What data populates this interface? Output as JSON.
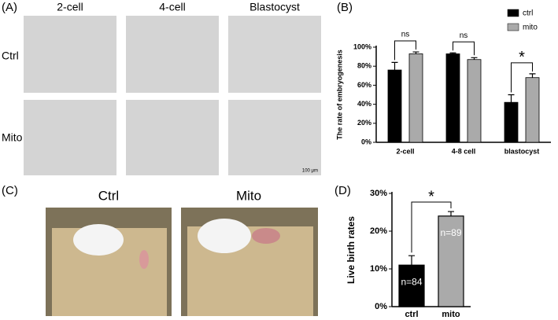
{
  "panels": {
    "a": "(A)",
    "b": "(B)",
    "c": "(C)",
    "d": "(D)"
  },
  "embryo_images": {
    "columns": [
      "2-cell",
      "4-cell",
      "Blastocyst"
    ],
    "rows": [
      "Ctrl",
      "Mito"
    ],
    "scale_bar": "100 μm"
  },
  "mouse_photos": {
    "labels": [
      "Ctrl",
      "Mito"
    ]
  },
  "chart_data": [
    {
      "type": "grouped_bar",
      "ylabel": "The rate of embryogenesis",
      "categories": [
        "2-cell",
        "4-8 cell",
        "blastocyst"
      ],
      "series": [
        {
          "name": "ctrl",
          "color": "#000000",
          "values": [
            76,
            93,
            42
          ],
          "errors": [
            8,
            1,
            8
          ]
        },
        {
          "name": "mito",
          "color": "#aaaaaa",
          "values": [
            93,
            87,
            68
          ],
          "errors": [
            2,
            2,
            4
          ]
        }
      ],
      "ylim": [
        0,
        100
      ],
      "yticks": [
        {
          "value": 0,
          "label": "0%"
        },
        {
          "value": 20,
          "label": "20%"
        },
        {
          "value": 40,
          "label": "40%"
        },
        {
          "value": 60,
          "label": "60%"
        },
        {
          "value": 80,
          "label": "80%"
        },
        {
          "value": 100,
          "label": "100%"
        }
      ],
      "significance": [
        "ns",
        "ns",
        "*"
      ],
      "legend": "upper right"
    },
    {
      "type": "bar",
      "ylabel": "Live birth rates",
      "categories": [
        "ctrl",
        "mito"
      ],
      "values": [
        11,
        24
      ],
      "errors": [
        2.5,
        1.2
      ],
      "colors": [
        "#000000",
        "#aaaaaa"
      ],
      "ylim": [
        0,
        30
      ],
      "yticks": [
        {
          "value": 0,
          "label": "0%"
        },
        {
          "value": 10,
          "label": "10%"
        },
        {
          "value": 20,
          "label": "20%"
        },
        {
          "value": 30,
          "label": "30%"
        }
      ],
      "bar_labels": [
        "n=84",
        "n=89"
      ],
      "significance": "*"
    }
  ]
}
